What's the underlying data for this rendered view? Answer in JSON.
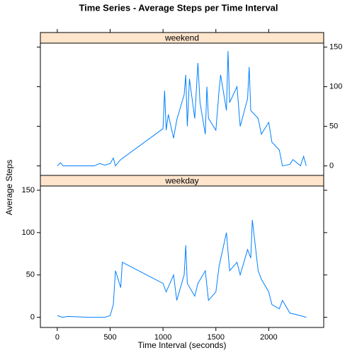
{
  "title": "Time Series - Average Steps per Time Interval",
  "x_label": "Time Interval (seconds)",
  "y_label": "Average Steps",
  "chart_data": [
    {
      "type": "line",
      "strip": "weekend",
      "color": "#0080ff",
      "strip_color": "#ffe5cc",
      "y_axis_side": "right",
      "x": [
        0,
        30,
        55,
        200,
        350,
        400,
        450,
        500,
        530,
        550,
        600,
        1000,
        1015,
        1030,
        1050,
        1100,
        1130,
        1200,
        1215,
        1230,
        1250,
        1300,
        1330,
        1350,
        1400,
        1415,
        1430,
        1500,
        1530,
        1545,
        1600,
        1615,
        1630,
        1700,
        1730,
        1800,
        1815,
        1830,
        1900,
        1930,
        2000,
        2030,
        2100,
        2130,
        2200,
        2230,
        2300,
        2330,
        2355
      ],
      "values": [
        0,
        4,
        0,
        0,
        0,
        3,
        1,
        3,
        10,
        0,
        8,
        47,
        95,
        45,
        65,
        35,
        58,
        90,
        115,
        50,
        110,
        60,
        130,
        80,
        40,
        100,
        60,
        45,
        95,
        115,
        70,
        145,
        80,
        100,
        50,
        85,
        125,
        70,
        60,
        40,
        55,
        30,
        20,
        0,
        2,
        8,
        0,
        12,
        0
      ],
      "xlim": [
        -160,
        2520
      ],
      "ylim": [
        -12,
        155
      ],
      "xticks": [
        0,
        500,
        1000,
        1500,
        2000
      ],
      "yticks": [
        0,
        50,
        100,
        150
      ]
    },
    {
      "type": "line",
      "strip": "weekday",
      "color": "#0080ff",
      "strip_color": "#ffe5cc",
      "y_axis_side": "left",
      "x": [
        0,
        50,
        100,
        300,
        450,
        500,
        530,
        550,
        600,
        615,
        1000,
        1030,
        1100,
        1130,
        1200,
        1215,
        1230,
        1300,
        1330,
        1400,
        1430,
        1500,
        1530,
        1600,
        1630,
        1700,
        1730,
        1800,
        1830,
        1845,
        1900,
        1930,
        2000,
        2030,
        2100,
        2130,
        2200,
        2300,
        2355
      ],
      "values": [
        2,
        0,
        1,
        0,
        0,
        2,
        15,
        55,
        35,
        65,
        40,
        30,
        50,
        20,
        50,
        85,
        40,
        25,
        40,
        55,
        20,
        30,
        60,
        100,
        55,
        65,
        50,
        80,
        70,
        115,
        55,
        45,
        30,
        15,
        10,
        20,
        5,
        2,
        0
      ],
      "xlim": [
        -160,
        2520
      ],
      "ylim": [
        -12,
        155
      ],
      "xticks": [
        0,
        500,
        1000,
        1500,
        2000
      ],
      "yticks": [
        0,
        50,
        100,
        150
      ]
    }
  ]
}
